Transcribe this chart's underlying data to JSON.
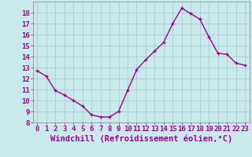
{
  "x": [
    0,
    1,
    2,
    3,
    4,
    5,
    6,
    7,
    8,
    9,
    10,
    11,
    12,
    13,
    14,
    15,
    16,
    17,
    18,
    19,
    20,
    21,
    22,
    23
  ],
  "y": [
    12.7,
    12.2,
    10.9,
    10.5,
    10.0,
    9.5,
    8.7,
    8.5,
    8.5,
    9.0,
    10.9,
    12.8,
    13.7,
    14.5,
    15.3,
    17.0,
    18.4,
    17.9,
    17.4,
    15.8,
    14.3,
    14.2,
    13.4,
    13.2
  ],
  "line_color": "#990099",
  "marker": "+",
  "background_color": "#c8eaea",
  "grid_color": "#aacccc",
  "xlabel": "Windchill (Refroidissement éolien,°C)",
  "xlim": [
    -0.5,
    23.5
  ],
  "ylim": [
    8,
    19
  ],
  "yticks": [
    8,
    9,
    10,
    11,
    12,
    13,
    14,
    15,
    16,
    17,
    18
  ],
  "xticks": [
    0,
    1,
    2,
    3,
    4,
    5,
    6,
    7,
    8,
    9,
    10,
    11,
    12,
    13,
    14,
    15,
    16,
    17,
    18,
    19,
    20,
    21,
    22,
    23
  ],
  "tick_label_fontsize": 6.5,
  "xlabel_fontsize": 7.5,
  "line_width": 1.0,
  "marker_size": 3.5
}
